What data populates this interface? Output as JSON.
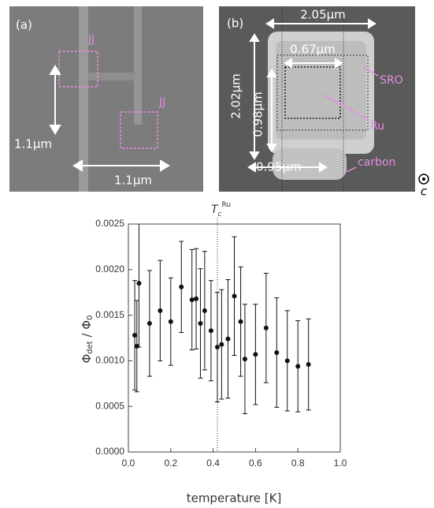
{
  "panels": {
    "a": {
      "label": "(a)",
      "jj1": "JJ",
      "jj2": "JJ",
      "vdim": "1.1μm",
      "hdim": "1.1μm"
    },
    "b": {
      "label": "(b)",
      "width": "2.05μm",
      "inner": "0.67μm",
      "sro": "SRO",
      "height": "2.02μm",
      "inner_h": "0.98μm",
      "ru": "Ru",
      "bottom": "0.95μm",
      "carbon": "carbon",
      "axis": "c"
    }
  },
  "chart_data": {
    "type": "scatter",
    "xlabel": "temperature [K]",
    "ylabel": [
      "Φ",
      "det",
      " / Φ",
      "0"
    ],
    "tc_label": [
      "T",
      "c",
      "Ru"
    ],
    "tc_x": 0.42,
    "x": [
      0.03,
      0.04,
      0.05,
      0.1,
      0.15,
      0.2,
      0.25,
      0.3,
      0.32,
      0.34,
      0.36,
      0.39,
      0.42,
      0.44,
      0.47,
      0.5,
      0.53,
      0.55,
      0.6,
      0.65,
      0.7,
      0.75,
      0.8,
      0.85
    ],
    "values": [
      0.00128,
      0.00116,
      0.00185,
      0.00141,
      0.00155,
      0.00143,
      0.00181,
      0.00167,
      0.00168,
      0.00141,
      0.00155,
      0.00133,
      0.00115,
      0.00118,
      0.00124,
      0.00171,
      0.00143,
      0.00102,
      0.00107,
      0.00136,
      0.00109,
      0.001,
      0.00094,
      0.00096
    ],
    "errors": [
      0.0006,
      0.0005,
      0.0007,
      0.00058,
      0.00055,
      0.00048,
      0.0005,
      0.00055,
      0.00055,
      0.0006,
      0.00065,
      0.00055,
      0.0006,
      0.0006,
      0.00065,
      0.00065,
      0.0006,
      0.0006,
      0.00055,
      0.0006,
      0.0006,
      0.00055,
      0.0005,
      0.0005
    ],
    "color": "#111111",
    "xlim": [
      0.0,
      1.0
    ],
    "ylim": [
      0.0,
      0.0025
    ],
    "xticks": [
      {
        "value": 0.0,
        "label": "0.0"
      },
      0.2,
      0.4,
      0.6,
      0.8,
      {
        "value": 1.0,
        "label": "1.0"
      }
    ],
    "yticks": [
      {
        "value": 0.0,
        "label": "0.0000"
      },
      {
        "value": 0.0005,
        "label": "0.0005"
      },
      {
        "value": 0.001,
        "label": "0.0010"
      },
      {
        "value": 0.0015,
        "label": "0.0015"
      },
      {
        "value": 0.002,
        "label": "0.0020"
      },
      {
        "value": 0.0025,
        "label": "0.0025"
      }
    ]
  }
}
